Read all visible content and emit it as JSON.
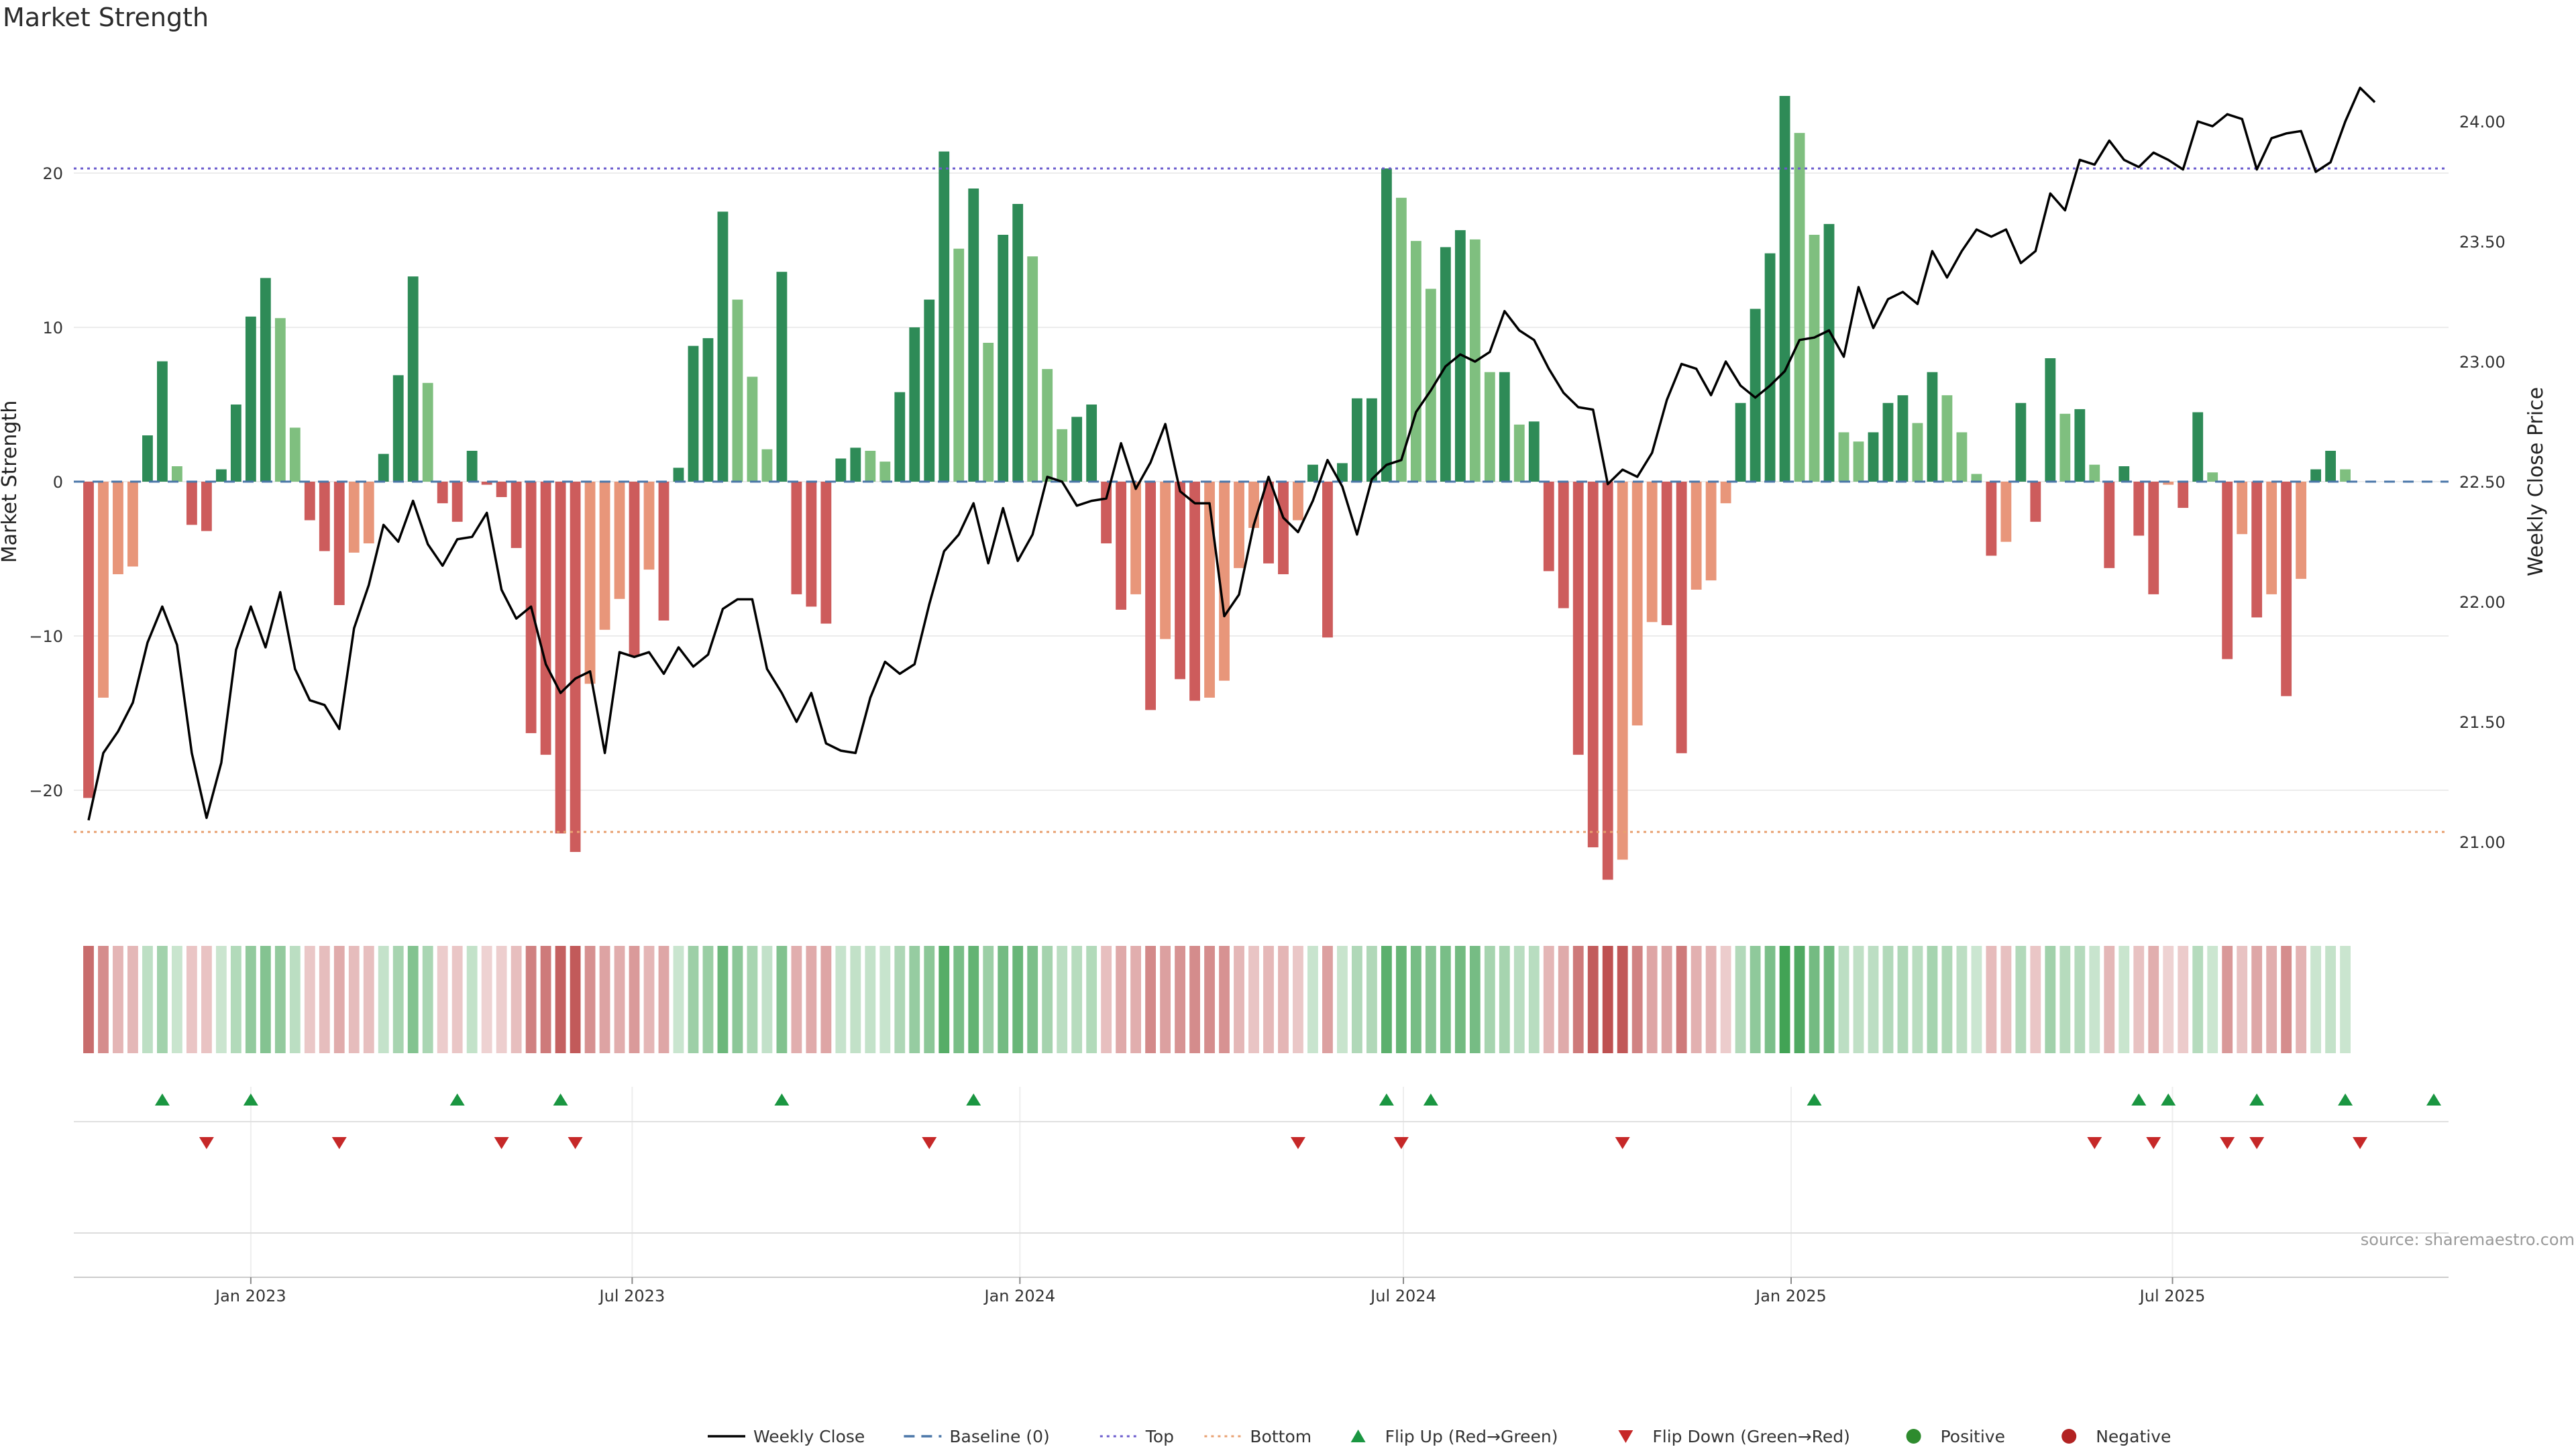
{
  "chart_data": {
    "type": "bar",
    "title": "Market Strength",
    "ylabel_left": "Market Strength",
    "ylabel_right": "Weekly Close Price",
    "ylim_left": [
      -28,
      28
    ],
    "ylim_right": [
      20.8,
      24.25
    ],
    "yticks_left": [
      -20,
      -10,
      0,
      10,
      20
    ],
    "yticks_right": [
      21.0,
      21.5,
      22.0,
      22.5,
      23.0,
      23.5,
      24.0
    ],
    "yticklabels_right": [
      "21.00",
      "21.50",
      "22.00",
      "22.50",
      "23.00",
      "23.50",
      "24.00"
    ],
    "top_level": 20.3,
    "bottom_level": -22.7,
    "x_start": "2022-10-09",
    "x_end": "2025-11-09",
    "x_tick_dates": [
      "2023-01-01",
      "2023-07-01",
      "2024-01-01",
      "2024-07-01",
      "2025-01-01",
      "2025-07-01"
    ],
    "x_tick_labels": [
      "Jan 2023",
      "Jul 2023",
      "Jan 2024",
      "Jul 2024",
      "Jan 2025",
      "Jul 2025"
    ],
    "first_week": "2022-10-16",
    "week_step_days": 7,
    "strength": [
      -20.5,
      -14,
      -6,
      -5.5,
      3,
      7.8,
      1,
      -2.8,
      -3.2,
      0.8,
      5,
      10.7,
      13.2,
      10.6,
      3.5,
      -2.5,
      -4.5,
      -8,
      -4.6,
      -4,
      1.8,
      6.9,
      13.3,
      6.4,
      -1.4,
      -2.6,
      2,
      -0.2,
      -1,
      -4.3,
      -16.3,
      -17.7,
      -22.8,
      -24,
      -13.1,
      -9.6,
      -7.6,
      -11.3,
      -5.7,
      -9,
      0.9,
      8.8,
      9.3,
      17.5,
      11.8,
      6.8,
      2.1,
      13.6,
      -7.3,
      -8.1,
      -9.2,
      1.5,
      2.2,
      2,
      1.3,
      5.8,
      10,
      11.8,
      21.4,
      15.1,
      19,
      9,
      16,
      18,
      14.6,
      7.3,
      3.4,
      4.2,
      5,
      -4,
      -8.3,
      -7.3,
      -14.8,
      -10.2,
      -12.8,
      -14.2,
      -14,
      -12.9,
      -5.6,
      -3,
      -5.3,
      -6,
      -2.5,
      1.1,
      -10.1,
      1.2,
      5.4,
      5.4,
      20.3,
      18.4,
      15.6,
      12.5,
      15.2,
      16.3,
      15.7,
      7.1,
      7.1,
      3.7,
      3.9,
      -5.8,
      -8.2,
      -17.7,
      -23.7,
      -25.8,
      -24.5,
      -15.8,
      -9.1,
      -9.3,
      -17.6,
      -7,
      -6.4,
      -1.4,
      5.1,
      11.2,
      14.8,
      25,
      22.6,
      16,
      16.7,
      3.2,
      2.6,
      3.2,
      5.1,
      5.6,
      3.8,
      7.1,
      5.6,
      3.2,
      0.5,
      -4.8,
      -3.9,
      5.1,
      -2.6,
      8,
      4.4,
      4.7,
      1.1,
      -5.6,
      1,
      -3.5,
      -7.3,
      -0.2,
      -1.7,
      4.5,
      0.6,
      -11.5,
      -3.4,
      -8.8,
      -7.3,
      -13.9,
      -6.3,
      0.8,
      2,
      0.8
    ],
    "close": [
      21.09,
      21.37,
      21.46,
      21.58,
      21.83,
      21.98,
      21.82,
      21.37,
      21.1,
      21.33,
      21.8,
      21.98,
      21.81,
      22.04,
      21.72,
      21.59,
      21.57,
      21.47,
      21.89,
      22.07,
      22.32,
      22.25,
      22.42,
      22.24,
      22.15,
      22.26,
      22.27,
      22.37,
      22.05,
      21.93,
      21.98,
      21.74,
      21.62,
      21.68,
      21.71,
      21.37,
      21.79,
      21.77,
      21.79,
      21.7,
      21.81,
      21.73,
      21.78,
      21.97,
      22.01,
      22.01,
      21.72,
      21.62,
      21.5,
      21.62,
      21.41,
      21.38,
      21.37,
      21.6,
      21.75,
      21.7,
      21.74,
      21.99,
      22.21,
      22.28,
      22.41,
      22.16,
      22.39,
      22.17,
      22.28,
      22.52,
      22.5,
      22.4,
      22.42,
      22.43,
      22.66,
      22.47,
      22.58,
      22.74,
      22.46,
      22.41,
      22.41,
      21.94,
      22.03,
      22.32,
      22.52,
      22.35,
      22.29,
      22.42,
      22.59,
      22.48,
      22.28,
      22.51,
      22.57,
      22.59,
      22.79,
      22.88,
      22.98,
      23.03,
      23.0,
      23.04,
      23.21,
      23.13,
      23.09,
      22.97,
      22.87,
      22.81,
      22.8,
      22.49,
      22.55,
      22.52,
      22.62,
      22.84,
      22.99,
      22.97,
      22.86,
      23.0,
      22.9,
      22.85,
      22.9,
      22.96,
      23.09,
      23.1,
      23.13,
      23.02,
      23.31,
      23.14,
      23.26,
      23.29,
      23.24,
      23.46,
      23.35,
      23.46,
      23.55,
      23.52,
      23.55,
      23.41,
      23.46,
      23.7,
      23.63,
      23.84,
      23.82,
      23.92,
      23.84,
      23.81,
      23.87,
      23.84,
      23.8,
      24.0,
      23.98,
      24.03,
      24.01,
      23.8,
      23.93,
      23.95,
      23.96,
      23.79,
      23.83,
      24.0,
      24.14,
      24.08
    ],
    "flips_up": [
      "2022-11-20",
      "2023-01-01",
      "2023-04-09",
      "2023-05-28",
      "2023-09-10",
      "2023-12-10",
      "2024-06-23",
      "2024-07-14",
      "2025-01-12",
      "2025-06-15",
      "2025-06-29",
      "2025-08-10",
      "2025-09-21",
      "2025-11-02"
    ],
    "flips_down": [
      "2022-12-11",
      "2023-02-12",
      "2023-04-30",
      "2023-06-04",
      "2023-11-19",
      "2024-05-12",
      "2024-06-30",
      "2024-10-13",
      "2025-05-25",
      "2025-06-22",
      "2025-07-27",
      "2025-08-10",
      "2025-09-28"
    ],
    "source_text": "source: sharemaestro.com",
    "legend": [
      {
        "label": "Weekly Close",
        "kind": "line",
        "color": "#000000"
      },
      {
        "label": "Baseline (0)",
        "kind": "dash",
        "color": "#4a76a8"
      },
      {
        "label": "Top",
        "kind": "dot",
        "color": "#6a5acd"
      },
      {
        "label": "Bottom",
        "kind": "dot",
        "color": "#e8a070"
      },
      {
        "label": "Flip Up (Red→Green)",
        "kind": "tri-up",
        "color": "#1a9641"
      },
      {
        "label": "Flip Down (Green→Red)",
        "kind": "tri-down",
        "color": "#c62828"
      },
      {
        "label": "Positive",
        "kind": "circle",
        "color": "#2e8b2e"
      },
      {
        "label": "Negative",
        "kind": "circle",
        "color": "#b22222"
      }
    ],
    "colors": {
      "pos_strong": "#2e8b57",
      "pos_light": "#7fbf7f",
      "neg_strong": "#cd5c5c",
      "neg_light": "#e8967a",
      "close_line": "#000000",
      "top_line": "#6a5acd",
      "bottom_line": "#e8a070",
      "baseline": "#4a76a8"
    }
  }
}
